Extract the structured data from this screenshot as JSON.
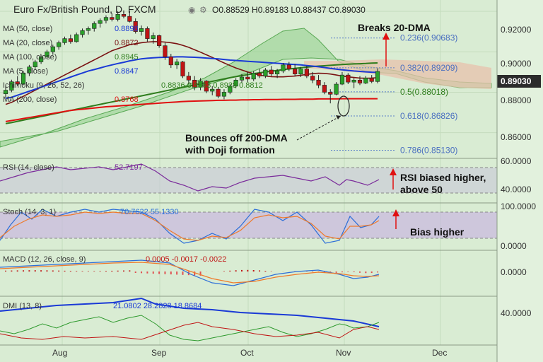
{
  "header": {
    "title": "Euro Fx/British Pound, D, FXCM",
    "ohlc": "O0.88529  H0.89183  L0.88437  C0.89030"
  },
  "indicators": [
    {
      "label": "MA (50, close)",
      "value": "0.8898",
      "color": "#1a3ad6"
    },
    {
      "label": "MA (20, close)",
      "value": "0.8872",
      "color": "#7a1212"
    },
    {
      "label": "MA (100, close)",
      "value": "0.8945",
      "color": "#2e7d1c"
    },
    {
      "label": "MA (5, close)",
      "value": "0.8847",
      "color": "#1a3ad6"
    },
    {
      "label": "Ichimoku (9, 26, 52, 26)",
      "value": "0.8836  0.8863  0.8928  0.8812",
      "color": "#2e7d1c"
    },
    {
      "label": "MA (200, close)",
      "value": "0.8768",
      "color": "#e01010"
    }
  ],
  "annotations": {
    "breaks": "Breaks 20-DMA",
    "bounce_line1": "Bounces off 200-DMA",
    "bounce_line2": "with Doji formation",
    "rsi_line1": "RSI biased higher,",
    "rsi_line2": "above 50",
    "stoch": "Bias higher"
  },
  "fib_levels": [
    {
      "label": "0.236(0.90683)",
      "value": 0.90683
    },
    {
      "label": "0.382(0.89209)",
      "value": 0.89209
    },
    {
      "label": "0.5(0.88018)",
      "value": 0.88018
    },
    {
      "label": "0.618(0.86826)",
      "value": 0.86826
    },
    {
      "label": "0.786(0.85130)",
      "value": 0.8513
    }
  ],
  "price_badge": "0.89030",
  "colors": {
    "bull": "#2aa12a",
    "bear": "#c01414",
    "ma200": "#e01010",
    "ma50": "#1a3ad6",
    "ma20": "#7a1212",
    "ma100": "#2e7d1c",
    "annotation_red": "#e01010"
  },
  "panels": {
    "rsi": {
      "label": "RSI (14, close)",
      "value": "52.7197",
      "ticks": [
        "60.0000",
        "40.0000"
      ]
    },
    "stoch": {
      "label": "Stoch (14, 3, 1)",
      "values": "70.7622  55.1330",
      "ticks": [
        "100.0000",
        "0.0000"
      ]
    },
    "macd": {
      "label": "MACD (12, 26, close, 9)",
      "values": "0.0005  -0.0017  -0.0022",
      "ticks": [
        "0.0000"
      ]
    },
    "dmi": {
      "label": "DMI (13, 8)",
      "values": "21.0802  28.2828  18.8684",
      "ticks": [
        "40.0000"
      ]
    }
  },
  "chart_data": {
    "type": "candlestick",
    "symbol": "Euro Fx/British Pound",
    "interval": "D",
    "source": "FXCM",
    "x_tick_labels": [
      "Aug",
      "Sep",
      "Oct",
      "Nov",
      "Dec"
    ],
    "y_tick_labels": [
      "0.92000",
      "0.90000",
      "0.88000",
      "0.86000"
    ],
    "ylim": [
      0.848,
      0.9235
    ],
    "candles": [
      [
        0.8792,
        0.883,
        0.8772,
        0.881
      ],
      [
        0.881,
        0.8862,
        0.88,
        0.8852
      ],
      [
        0.8852,
        0.888,
        0.883,
        0.884
      ],
      [
        0.884,
        0.8905,
        0.8835,
        0.8895
      ],
      [
        0.8895,
        0.8935,
        0.888,
        0.8925
      ],
      [
        0.8925,
        0.896,
        0.891,
        0.895
      ],
      [
        0.895,
        0.8985,
        0.894,
        0.8975
      ],
      [
        0.8975,
        0.901,
        0.8965,
        0.9
      ],
      [
        0.9,
        0.9035,
        0.8985,
        0.9025
      ],
      [
        0.9025,
        0.9055,
        0.901,
        0.9045
      ],
      [
        0.9045,
        0.9075,
        0.9035,
        0.9065
      ],
      [
        0.9065,
        0.9085,
        0.904,
        0.905
      ],
      [
        0.905,
        0.9095,
        0.9045,
        0.9085
      ],
      [
        0.9085,
        0.9115,
        0.907,
        0.9105
      ],
      [
        0.9105,
        0.9125,
        0.9085,
        0.9115
      ],
      [
        0.9115,
        0.915,
        0.91,
        0.914
      ],
      [
        0.914,
        0.9165,
        0.912,
        0.9155
      ],
      [
        0.9155,
        0.918,
        0.914,
        0.917
      ],
      [
        0.917,
        0.919,
        0.915,
        0.916
      ],
      [
        0.916,
        0.92,
        0.915,
        0.9185
      ],
      [
        0.9185,
        0.9205,
        0.9165,
        0.9175
      ],
      [
        0.9175,
        0.92,
        0.9145,
        0.915
      ],
      [
        0.915,
        0.9165,
        0.909,
        0.91
      ],
      [
        0.91,
        0.913,
        0.908,
        0.9115
      ],
      [
        0.9115,
        0.9125,
        0.905,
        0.9065
      ],
      [
        0.9065,
        0.9095,
        0.904,
        0.908
      ],
      [
        0.908,
        0.9085,
        0.902,
        0.903
      ],
      [
        0.903,
        0.9045,
        0.896,
        0.8975
      ],
      [
        0.8975,
        0.899,
        0.892,
        0.8935
      ],
      [
        0.8935,
        0.8965,
        0.8915,
        0.895
      ],
      [
        0.895,
        0.8955,
        0.887,
        0.888
      ],
      [
        0.888,
        0.89,
        0.884,
        0.886
      ],
      [
        0.886,
        0.888,
        0.881,
        0.8825
      ],
      [
        0.8825,
        0.887,
        0.881,
        0.8855
      ],
      [
        0.8855,
        0.886,
        0.8795,
        0.8805
      ],
      [
        0.8805,
        0.883,
        0.8785,
        0.8815
      ],
      [
        0.8815,
        0.8825,
        0.877,
        0.878
      ],
      [
        0.878,
        0.8815,
        0.8765,
        0.88
      ],
      [
        0.88,
        0.884,
        0.879,
        0.883
      ],
      [
        0.883,
        0.887,
        0.882,
        0.886
      ],
      [
        0.886,
        0.889,
        0.8845,
        0.8875
      ],
      [
        0.8875,
        0.89,
        0.885,
        0.8865
      ],
      [
        0.8865,
        0.8905,
        0.8855,
        0.8895
      ],
      [
        0.8895,
        0.8915,
        0.887,
        0.888
      ],
      [
        0.888,
        0.892,
        0.887,
        0.891
      ],
      [
        0.891,
        0.893,
        0.888,
        0.889
      ],
      [
        0.889,
        0.8915,
        0.887,
        0.8905
      ],
      [
        0.8905,
        0.8945,
        0.8895,
        0.8935
      ],
      [
        0.8935,
        0.895,
        0.8905,
        0.8915
      ],
      [
        0.8915,
        0.894,
        0.888,
        0.889
      ],
      [
        0.889,
        0.8925,
        0.8875,
        0.8915
      ],
      [
        0.8915,
        0.893,
        0.887,
        0.888
      ],
      [
        0.888,
        0.89,
        0.8845,
        0.886
      ],
      [
        0.886,
        0.8885,
        0.882,
        0.8835
      ],
      [
        0.8835,
        0.885,
        0.879,
        0.88
      ],
      [
        0.88,
        0.8815,
        0.8745,
        0.879
      ],
      [
        0.879,
        0.885,
        0.8785,
        0.884
      ],
      [
        0.884,
        0.89,
        0.8835,
        0.8885
      ],
      [
        0.8885,
        0.8895,
        0.884,
        0.885
      ],
      [
        0.885,
        0.887,
        0.882,
        0.886
      ],
      [
        0.886,
        0.888,
        0.8835,
        0.8845
      ],
      [
        0.8845,
        0.888,
        0.884,
        0.887
      ],
      [
        0.887,
        0.8885,
        0.8845,
        0.8853
      ],
      [
        0.8853,
        0.8918,
        0.8844,
        0.8903
      ]
    ],
    "ma200": [
      0.8655,
      0.866,
      0.8665,
      0.867,
      0.8675,
      0.868,
      0.8685,
      0.869,
      0.8695,
      0.87,
      0.8705,
      0.871,
      0.8713,
      0.8716,
      0.8719,
      0.8722,
      0.8725,
      0.8728,
      0.873,
      0.8732,
      0.8734,
      0.8736,
      0.8738,
      0.874,
      0.8742,
      0.8744,
      0.8746,
      0.8748,
      0.875,
      0.8752,
      0.8754,
      0.8755,
      0.8756,
      0.8757,
      0.8758,
      0.8759,
      0.876,
      0.876,
      0.8761,
      0.8761,
      0.8762,
      0.8762,
      0.8763,
      0.8763,
      0.8764,
      0.8764,
      0.8764,
      0.8765,
      0.8765,
      0.8765,
      0.8766,
      0.8766,
      0.8766,
      0.8767,
      0.8767,
      0.8767,
      0.8767,
      0.8768,
      0.8768,
      0.8768,
      0.8768,
      0.8768,
      0.8768,
      0.8768
    ],
    "ma50": [
      0.877,
      0.8775,
      0.8785,
      0.8795,
      0.8805,
      0.8815,
      0.8825,
      0.8835,
      0.8845,
      0.8855,
      0.8865,
      0.8875,
      0.8885,
      0.8895,
      0.8905,
      0.8912,
      0.892,
      0.8928,
      0.8935,
      0.8942,
      0.8948,
      0.8955,
      0.896,
      0.8965,
      0.8968,
      0.897,
      0.8972,
      0.8973,
      0.8974,
      0.8975,
      0.8975,
      0.8974,
      0.8973,
      0.8971,
      0.8969,
      0.8967,
      0.8965,
      0.8962,
      0.8959,
      0.8957,
      0.8955,
      0.8953,
      0.8951,
      0.8949,
      0.8947,
      0.8945,
      0.8943,
      0.8941,
      0.8939,
      0.8937,
      0.8935,
      0.8932,
      0.8929,
      0.8926,
      0.8922,
      0.8918,
      0.8914,
      0.8911,
      0.8908,
      0.8905,
      0.8903,
      0.8901,
      0.8899,
      0.8898
    ],
    "ma20": [
      0.874,
      0.875,
      0.8765,
      0.878,
      0.8795,
      0.881,
      0.8825,
      0.884,
      0.8855,
      0.887,
      0.8885,
      0.89,
      0.8915,
      0.893,
      0.8945,
      0.896,
      0.8975,
      0.899,
      0.9005,
      0.9015,
      0.9025,
      0.9035,
      0.904,
      0.9045,
      0.9048,
      0.905,
      0.905,
      0.9048,
      0.9045,
      0.904,
      0.9032,
      0.9022,
      0.901,
      0.8998,
      0.8985,
      0.8972,
      0.8958,
      0.8945,
      0.8932,
      0.892,
      0.891,
      0.89,
      0.8892,
      0.8885,
      0.888,
      0.8877,
      0.8876,
      0.8876,
      0.8878,
      0.888,
      0.8884,
      0.8888,
      0.8892,
      0.8894,
      0.8893,
      0.889,
      0.8885,
      0.888,
      0.8876,
      0.8873,
      0.887,
      0.8869,
      0.887,
      0.8872
    ],
    "ma100": [
      0.8645,
      0.865,
      0.8656,
      0.8662,
      0.8668,
      0.8674,
      0.868,
      0.8686,
      0.8692,
      0.8698,
      0.8704,
      0.871,
      0.8716,
      0.8722,
      0.8728,
      0.8734,
      0.874,
      0.8746,
      0.8752,
      0.8758,
      0.8764,
      0.877,
      0.8776,
      0.8782,
      0.8788,
      0.8794,
      0.88,
      0.8806,
      0.8812,
      0.8818,
      0.8824,
      0.883,
      0.8836,
      0.8842,
      0.8848,
      0.8854,
      0.886,
      0.8866,
      0.8872,
      0.8877,
      0.8882,
      0.8887,
      0.8892,
      0.8896,
      0.89,
      0.8904,
      0.8908,
      0.8912,
      0.8915,
      0.8918,
      0.8921,
      0.8924,
      0.8927,
      0.8929,
      0.8931,
      0.8933,
      0.8935,
      0.8937,
      0.8939,
      0.894,
      0.8941,
      0.8942,
      0.8944,
      0.8945
    ]
  }
}
